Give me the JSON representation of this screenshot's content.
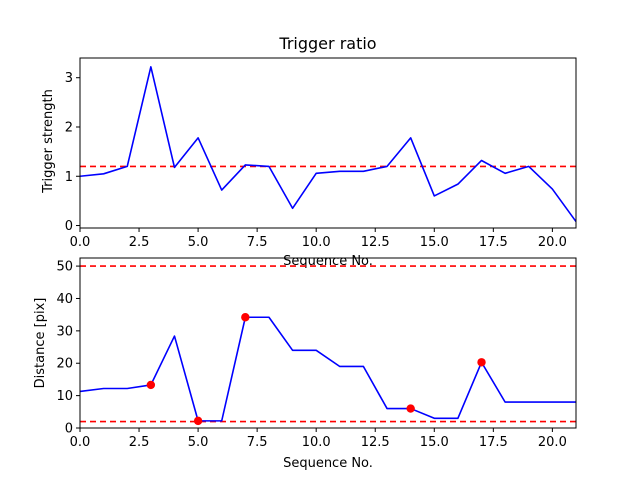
{
  "chart_data": [
    {
      "type": "line",
      "title": "Trigger ratio",
      "xlabel": "Sequence No.",
      "ylabel": "Trigger strength",
      "xlim": [
        0,
        21
      ],
      "ylim": [
        -0.05,
        3.4
      ],
      "xticks": [
        0,
        2.5,
        5,
        7.5,
        10,
        12.5,
        15,
        17.5,
        20
      ],
      "xtick_labels": [
        "0.0",
        "2.5",
        "5.0",
        "7.5",
        "10.0",
        "12.5",
        "15.0",
        "17.5",
        "20.0"
      ],
      "yticks": [
        0,
        1,
        2,
        3
      ],
      "ytick_labels": [
        "0",
        "1",
        "2",
        "3"
      ],
      "series": [
        {
          "color": "#0000ff",
          "x": [
            0,
            1,
            2,
            3,
            4,
            5,
            6,
            7,
            8,
            9,
            10,
            11,
            12,
            13,
            14,
            15,
            16,
            17,
            18,
            19,
            20,
            21
          ],
          "values": [
            1.0,
            1.05,
            1.2,
            3.22,
            1.18,
            1.78,
            0.72,
            1.23,
            1.2,
            0.35,
            1.06,
            1.1,
            1.1,
            1.2,
            1.78,
            0.6,
            0.84,
            1.32,
            1.06,
            1.2,
            0.74,
            0.08
          ]
        }
      ],
      "hlines": [
        {
          "y": 1.2,
          "color": "#ff0000",
          "style": "dashed"
        }
      ],
      "grid": false
    },
    {
      "type": "line",
      "title": "",
      "xlabel": "Sequence No.",
      "ylabel": "Distance [pix]",
      "xlim": [
        0,
        21
      ],
      "ylim": [
        0,
        52.5
      ],
      "xticks": [
        0,
        2.5,
        5,
        7.5,
        10,
        12.5,
        15,
        17.5,
        20
      ],
      "xtick_labels": [
        "0.0",
        "2.5",
        "5.0",
        "7.5",
        "10.0",
        "12.5",
        "15.0",
        "17.5",
        "20.0"
      ],
      "yticks": [
        0,
        10,
        20,
        30,
        40,
        50
      ],
      "ytick_labels": [
        "0",
        "10",
        "20",
        "30",
        "40",
        "50"
      ],
      "series": [
        {
          "color": "#0000ff",
          "x": [
            0,
            1,
            2,
            3,
            4,
            5,
            6,
            7,
            8,
            9,
            10,
            11,
            12,
            13,
            14,
            15,
            16,
            17,
            18,
            19,
            20,
            21
          ],
          "values": [
            11.3,
            12.2,
            12.2,
            13.3,
            28.4,
            2.2,
            2.2,
            34.2,
            34.2,
            24.0,
            24.0,
            19.0,
            19.0,
            6.0,
            6.0,
            3.0,
            3.0,
            20.3,
            8.0,
            8.0,
            8.0,
            8.0
          ]
        }
      ],
      "markers": {
        "color": "#ff0000",
        "x": [
          3,
          5,
          7,
          14,
          17
        ],
        "y": [
          13.3,
          2.2,
          34.2,
          6.0,
          20.3
        ]
      },
      "hlines": [
        {
          "y": 50,
          "color": "#ff0000",
          "style": "dashed"
        },
        {
          "y": 2,
          "color": "#ff0000",
          "style": "dashed"
        }
      ],
      "grid": false
    }
  ]
}
